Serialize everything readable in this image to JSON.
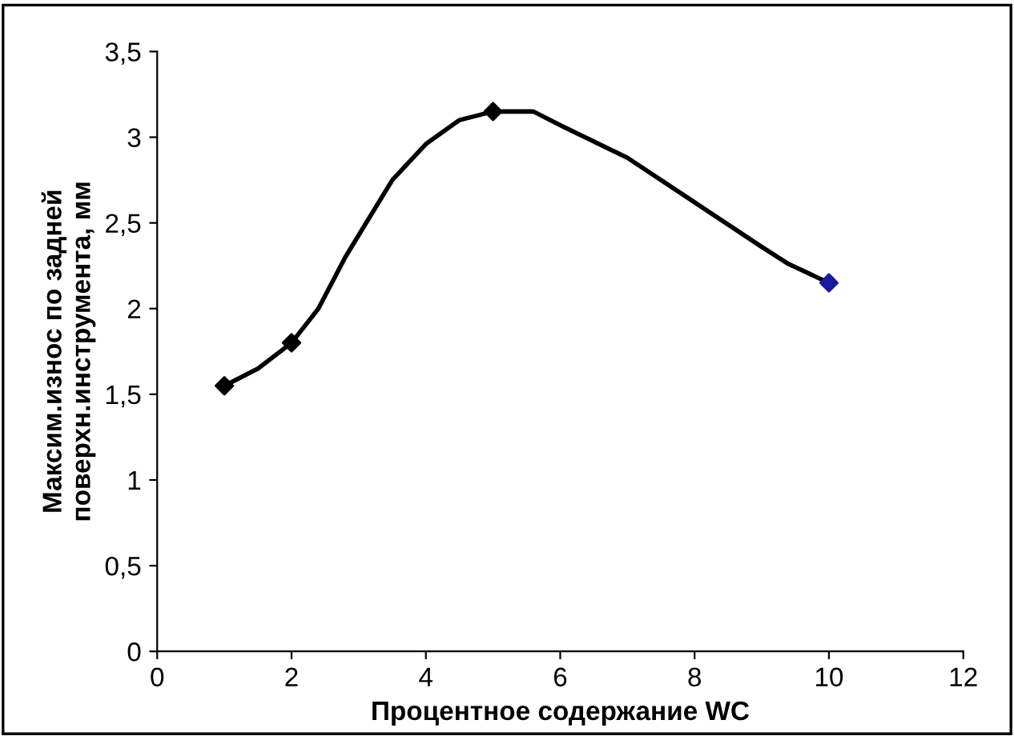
{
  "chart_data": {
    "type": "line",
    "xlabel": "Процентное содержание WC",
    "ylabel": "Максим.износ по задней\nповерхн.инструмента, мм",
    "x": [
      1,
      2,
      5,
      10
    ],
    "series": [
      {
        "marker": "none",
        "color": "#000000",
        "x": [
          1,
          1.5,
          2,
          2.4,
          2.8,
          3.5,
          4,
          4.5,
          5,
          5.6,
          6,
          7,
          8,
          9,
          9.4,
          10
        ],
        "values": [
          1.55,
          1.65,
          1.8,
          2.0,
          2.3,
          2.75,
          2.96,
          3.1,
          3.15,
          3.15,
          3.07,
          2.88,
          2.62,
          2.36,
          2.26,
          2.15
        ]
      },
      {
        "type": "scatter",
        "marker": "diamond",
        "colors": [
          "#000000",
          "#000000",
          "#000000",
          "#1a1aa0"
        ],
        "values": [
          1.55,
          1.8,
          3.15,
          2.15
        ]
      }
    ],
    "line_style": "solid",
    "grid": false,
    "legend": false,
    "xlim": [
      0,
      12
    ],
    "xticks": [
      0,
      2,
      4,
      6,
      8,
      10,
      12
    ],
    "ylim": [
      0,
      3.5
    ],
    "yticks": [
      0,
      {
        "value": 0.5,
        "label": "0,5"
      },
      1,
      {
        "value": 1.5,
        "label": "1,5"
      },
      2,
      {
        "value": 2.5,
        "label": "2,5"
      },
      3,
      {
        "value": 3.5,
        "label": "3,5"
      }
    ]
  }
}
